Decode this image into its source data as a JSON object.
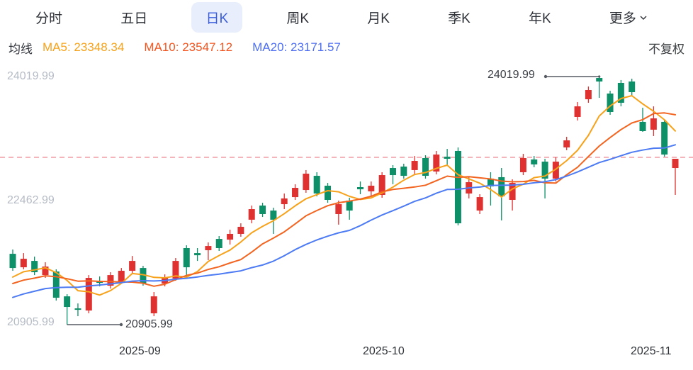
{
  "tabs": {
    "items": [
      {
        "label": "分时",
        "active": false
      },
      {
        "label": "五日",
        "active": false
      },
      {
        "label": "日K",
        "active": true
      },
      {
        "label": "周K",
        "active": false
      },
      {
        "label": "月K",
        "active": false
      },
      {
        "label": "季K",
        "active": false
      },
      {
        "label": "年K",
        "active": false
      },
      {
        "label": "更多",
        "active": false,
        "icon": "chevron-down-icon"
      }
    ]
  },
  "legend": {
    "title": "均线",
    "items": [
      {
        "label": "MA5:",
        "value": "23348.34",
        "color": "#f7a21b"
      },
      {
        "label": "MA10:",
        "value": "23547.12",
        "color": "#f2551f"
      },
      {
        "label": "MA20:",
        "value": "23171.57",
        "color": "#4d6ef2"
      }
    ],
    "adjustment_label": "不复权"
  },
  "chart_data": {
    "type": "candlestick",
    "title": "",
    "y_ticks": [
      24019.99,
      22462.99,
      20905.99
    ],
    "x_ticks": [
      "2025-09",
      "2025-10",
      "2025-11"
    ],
    "reference_price": 23006,
    "grid": false,
    "legend_position": "top",
    "ma_periods": [
      5,
      10,
      20
    ],
    "ma_prehistory_closes": [
      20850,
      20900,
      20950,
      21000,
      21050,
      21100,
      21150,
      21200,
      21250,
      21280,
      21300,
      21320,
      21340,
      21360,
      21380,
      21400,
      21450,
      21500,
      21550
    ],
    "colors": {
      "up": "#e03131",
      "down": "#0d8f68",
      "ma5": "#f7a21b",
      "ma10": "#f2641f",
      "ma20": "#4d7bf3",
      "reference": "#f0a1a8",
      "pointer": "#565b63"
    },
    "annotations": {
      "high": {
        "label": "24019.99",
        "price": 24019.99,
        "candle_index": 54
      },
      "low": {
        "label": "20905.99",
        "price": 20905.99,
        "candle_index": 5
      }
    },
    "candles_ohlc": [
      [
        21795,
        21849,
        21582,
        21617
      ],
      [
        21626,
        21804,
        21600,
        21733
      ],
      [
        21706,
        21760,
        21528,
        21564
      ],
      [
        21528,
        21689,
        21493,
        21635
      ],
      [
        21573,
        21600,
        21208,
        21244
      ],
      [
        21261,
        21288,
        20905.99,
        21128
      ],
      [
        21110,
        21172,
        21012,
        21092
      ],
      [
        21083,
        21528,
        21048,
        21493
      ],
      [
        21457,
        21511,
        21386,
        21430
      ],
      [
        21395,
        21564,
        21359,
        21528
      ],
      [
        21448,
        21617,
        21422,
        21582
      ],
      [
        21582,
        21768,
        21555,
        21706
      ],
      [
        21617,
        21644,
        21395,
        21422
      ],
      [
        21048,
        21315,
        21012,
        21261
      ],
      [
        21422,
        21537,
        21386,
        21493
      ],
      [
        21484,
        21742,
        21457,
        21706
      ],
      [
        21867,
        21902,
        21493,
        21626
      ],
      [
        21804,
        21867,
        21706,
        21777
      ],
      [
        21840,
        21938,
        21715,
        21893
      ],
      [
        21982,
        22018,
        21831,
        21867
      ],
      [
        21973,
        22098,
        21911,
        22045
      ],
      [
        22045,
        22178,
        22009,
        22134
      ],
      [
        22223,
        22401,
        22178,
        22356
      ],
      [
        22401,
        22436,
        22258,
        22294
      ],
      [
        22338,
        22374,
        22045,
        22223
      ],
      [
        22418,
        22552,
        22356,
        22490
      ],
      [
        22507,
        22668,
        22472,
        22623
      ],
      [
        22596,
        22846,
        22561,
        22801
      ],
      [
        22774,
        22819,
        22516,
        22552
      ],
      [
        22650,
        22685,
        22436,
        22472
      ],
      [
        22294,
        22463,
        22161,
        22418
      ],
      [
        22463,
        22499,
        22223,
        22338
      ],
      [
        22632,
        22703,
        22543,
        22605
      ],
      [
        22579,
        22703,
        22525,
        22650
      ],
      [
        22534,
        22819,
        22499,
        22783
      ],
      [
        22872,
        22908,
        22668,
        22783
      ],
      [
        22890,
        22926,
        22739,
        22774
      ],
      [
        22846,
        23023,
        22792,
        22961
      ],
      [
        22997,
        23032,
        22739,
        22774
      ],
      [
        22828,
        23086,
        22792,
        23041
      ],
      [
        23014,
        23112,
        22908,
        22988
      ],
      [
        23086,
        23130,
        22152,
        22178
      ],
      [
        22552,
        22757,
        22490,
        22694
      ],
      [
        22338,
        22543,
        22294,
        22507
      ],
      [
        22739,
        22819,
        22401,
        22641
      ],
      [
        22757,
        22872,
        22214,
        22516
      ],
      [
        22472,
        22730,
        22338,
        22685
      ],
      [
        22819,
        23050,
        22783,
        22997
      ],
      [
        22979,
        23023,
        22881,
        22917
      ],
      [
        22952,
        22988,
        22490,
        22739
      ],
      [
        22739,
        23006,
        22703,
        22952
      ],
      [
        23130,
        23264,
        23095,
        23219
      ],
      [
        23513,
        23700,
        23468,
        23646
      ],
      [
        23735,
        23895,
        23691,
        23851
      ],
      [
        24002,
        24019.99,
        23753,
        23958
      ],
      [
        23807,
        23842,
        23540,
        23575
      ],
      [
        23940,
        23976,
        23646,
        23691
      ],
      [
        23958,
        23993,
        23780,
        23824
      ],
      [
        23451,
        23629,
        23326,
        23335
      ],
      [
        23353,
        23646,
        23273,
        23495
      ],
      [
        23451,
        23468,
        23015,
        23041
      ],
      [
        22872,
        22988,
        22534,
        22988
      ]
    ]
  }
}
